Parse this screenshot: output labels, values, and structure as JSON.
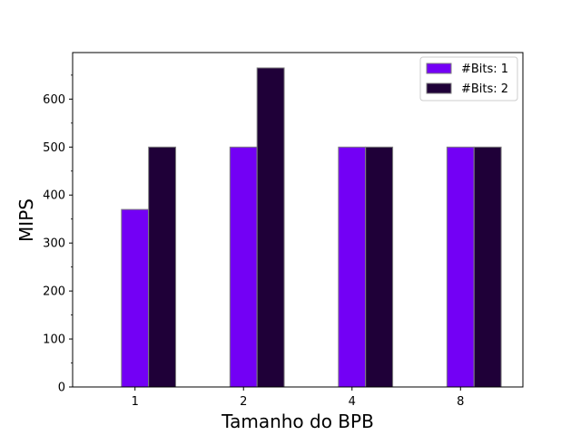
{
  "chart_data": {
    "type": "bar",
    "title": "",
    "xlabel": "Tamanho do BPB",
    "ylabel": "MIPS",
    "categories": [
      "1",
      "2",
      "4",
      "8"
    ],
    "series": [
      {
        "name": "#Bits: 1",
        "color": "#7300f5",
        "values": [
          370,
          500,
          500,
          500
        ]
      },
      {
        "name": "#Bits: 2",
        "color": "#1f0038",
        "values": [
          500,
          665,
          500,
          500
        ]
      }
    ],
    "ylim": [
      0,
      697
    ],
    "yticks": [
      0,
      100,
      200,
      300,
      400,
      500,
      600
    ],
    "grid": false,
    "legend_position": "top-right",
    "edge_color": "#808080"
  }
}
